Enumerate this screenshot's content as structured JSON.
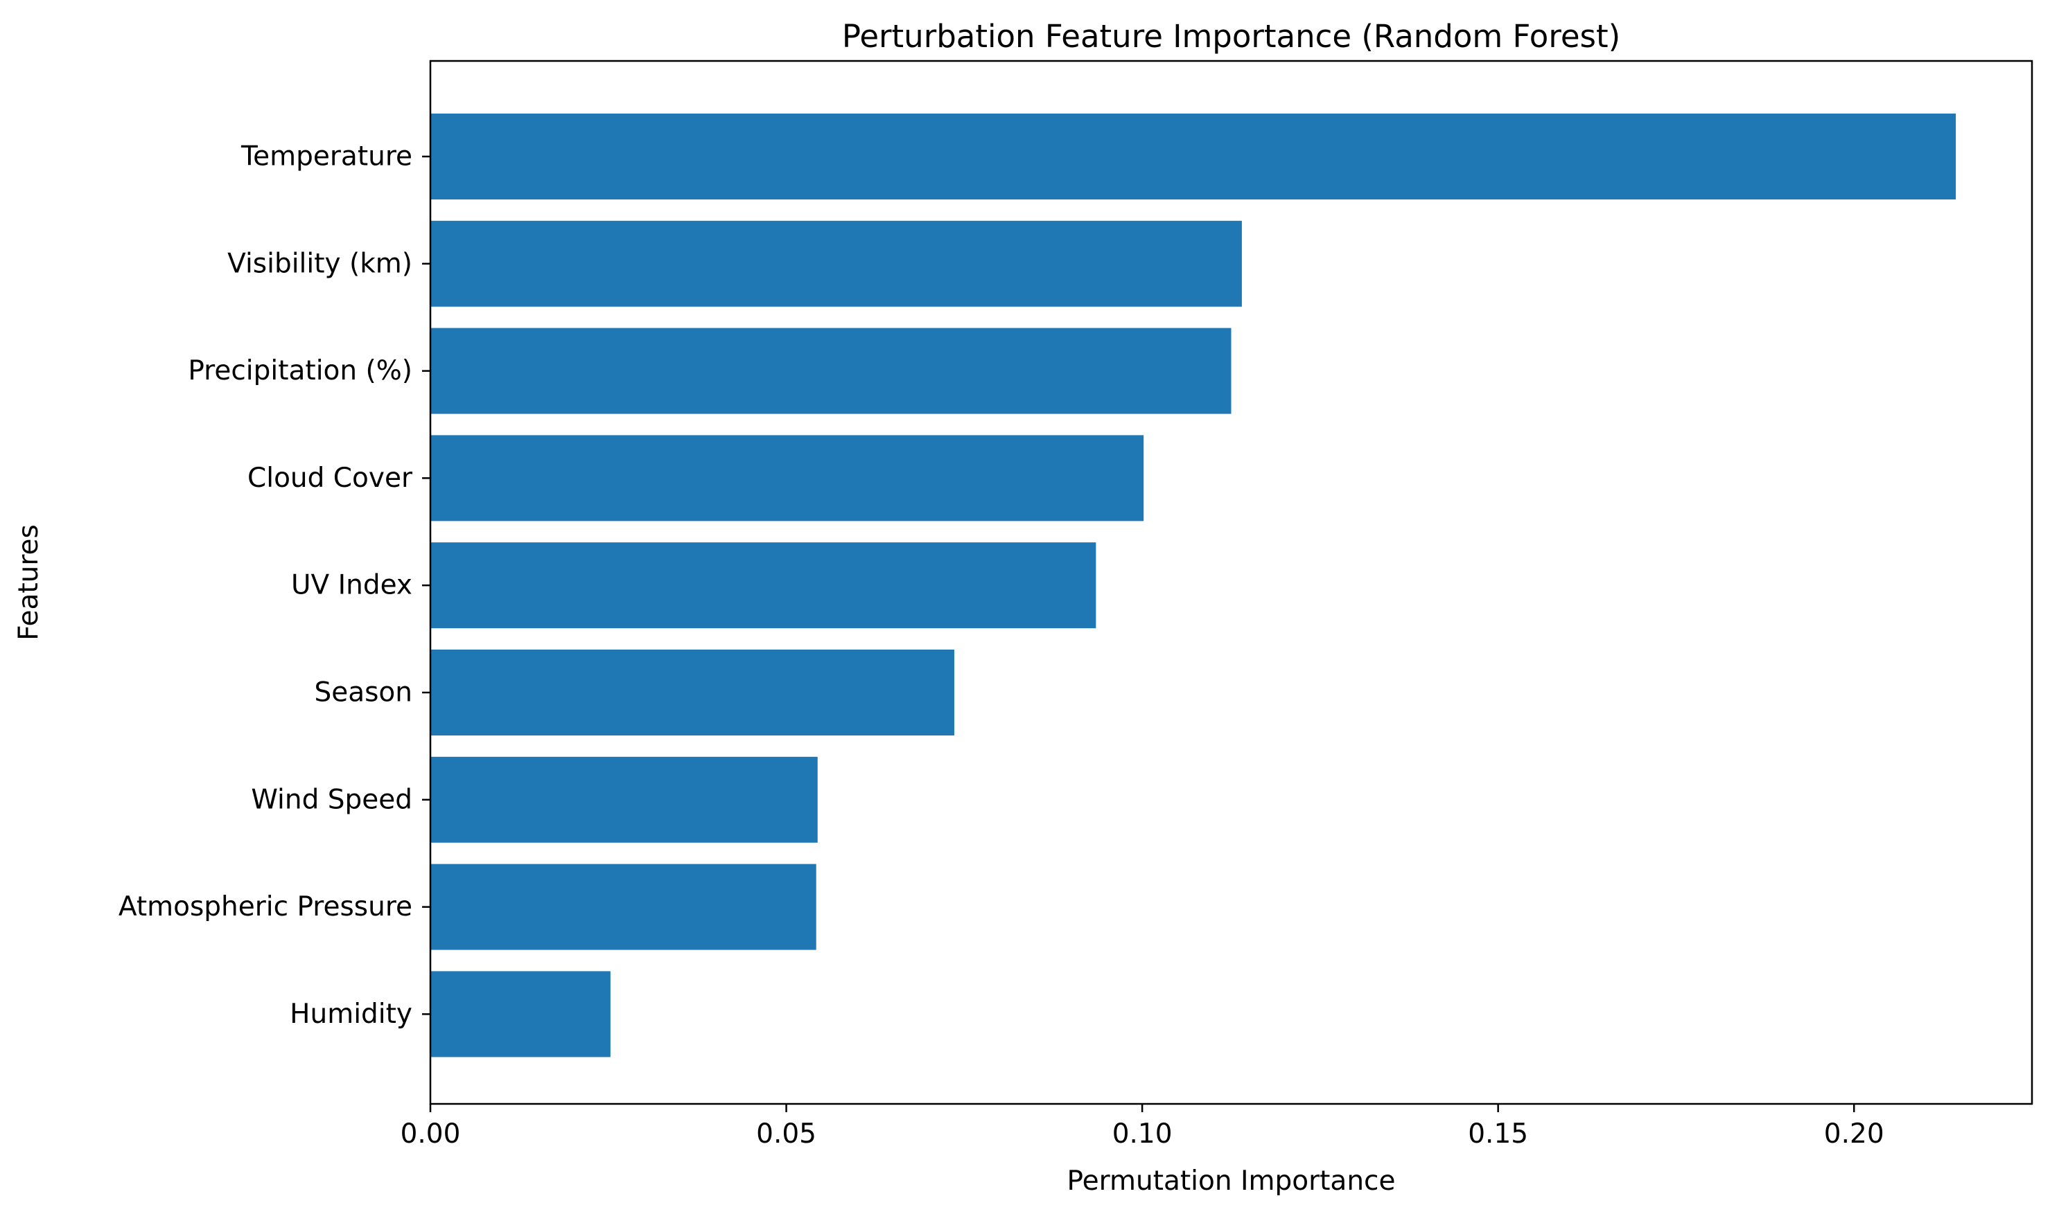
{
  "chart_data": {
    "type": "bar",
    "orientation": "horizontal",
    "title": "Perturbation Feature Importance (Random Forest)",
    "xlabel": "Permutation Importance",
    "ylabel": "Features",
    "xlim": [
      0,
      0.225
    ],
    "xticks": [
      0.0,
      0.05,
      0.1,
      0.15,
      0.2
    ],
    "xtick_labels": [
      "0.00",
      "0.05",
      "0.10",
      "0.15",
      "0.20"
    ],
    "categories": [
      "Temperature",
      "Visibility (km)",
      "Precipitation (%)",
      "Cloud Cover",
      "UV Index",
      "Season",
      "Wind Speed",
      "Atmospheric Pressure",
      "Humidity"
    ],
    "values": [
      0.2143,
      0.114,
      0.1125,
      0.1002,
      0.0935,
      0.0736,
      0.0544,
      0.0542,
      0.0253
    ],
    "bar_color": "#1f77b4",
    "grid": false,
    "legend": "none"
  }
}
